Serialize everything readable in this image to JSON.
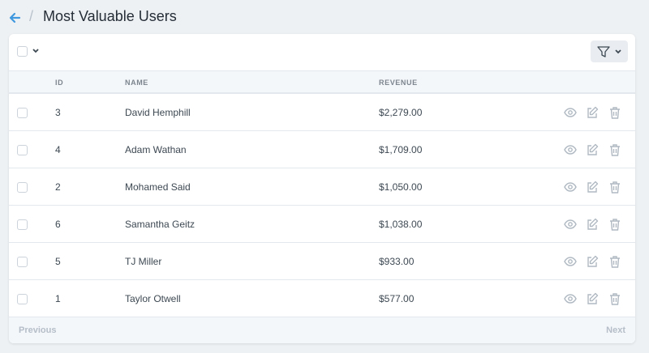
{
  "header": {
    "title": "Most Valuable Users"
  },
  "table": {
    "columns": [
      "ID",
      "NAME",
      "REVENUE"
    ],
    "rows": [
      [
        "3",
        "David Hemphill",
        "$2,279.00"
      ],
      [
        "4",
        "Adam Wathan",
        "$1,709.00"
      ],
      [
        "2",
        "Mohamed Said",
        "$1,050.00"
      ],
      [
        "6",
        "Samantha Geitz",
        "$1,038.00"
      ],
      [
        "5",
        "TJ Miller",
        "$933.00"
      ],
      [
        "1",
        "Taylor Otwell",
        "$577.00"
      ]
    ]
  },
  "pagination": {
    "previous": "Previous",
    "next": "Next"
  }
}
